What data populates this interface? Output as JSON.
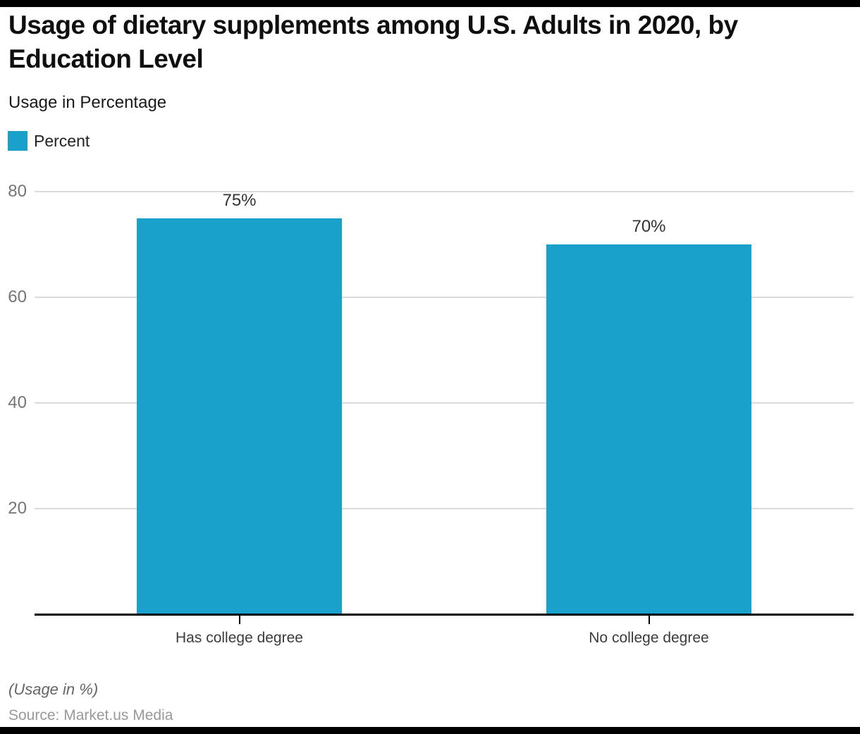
{
  "header": {
    "title": "Usage of dietary supplements among U.S. Adults in 2020, by Education Level",
    "subtitle": "Usage in Percentage"
  },
  "legend": {
    "label": "Percent",
    "swatch_icon": "legend-swatch-square"
  },
  "footer": {
    "note": "(Usage in %)",
    "source": "Source: Market.us Media"
  },
  "colors": {
    "accent": "#19A0CB",
    "gridline": "#DBDBDB",
    "axis": "#000000",
    "ytick_label": "#757575",
    "value_label": "#333333",
    "category_label": "#3C3C3C"
  },
  "chart_data": {
    "type": "bar",
    "title": "Usage of dietary supplements among U.S. Adults in 2020, by Education Level",
    "subtitle": "Usage in Percentage",
    "categories": [
      "Has college degree",
      "No college degree"
    ],
    "series": [
      {
        "name": "Percent",
        "values": [
          75,
          70
        ],
        "color": "#19A0CB"
      }
    ],
    "value_labels": [
      "75%",
      "70%"
    ],
    "xlabel": "",
    "ylabel": "Usage in Percentage",
    "ylim": [
      0,
      80
    ],
    "yticks": [
      20,
      40,
      60,
      80
    ],
    "grid": true,
    "legend_position": "top-left"
  }
}
